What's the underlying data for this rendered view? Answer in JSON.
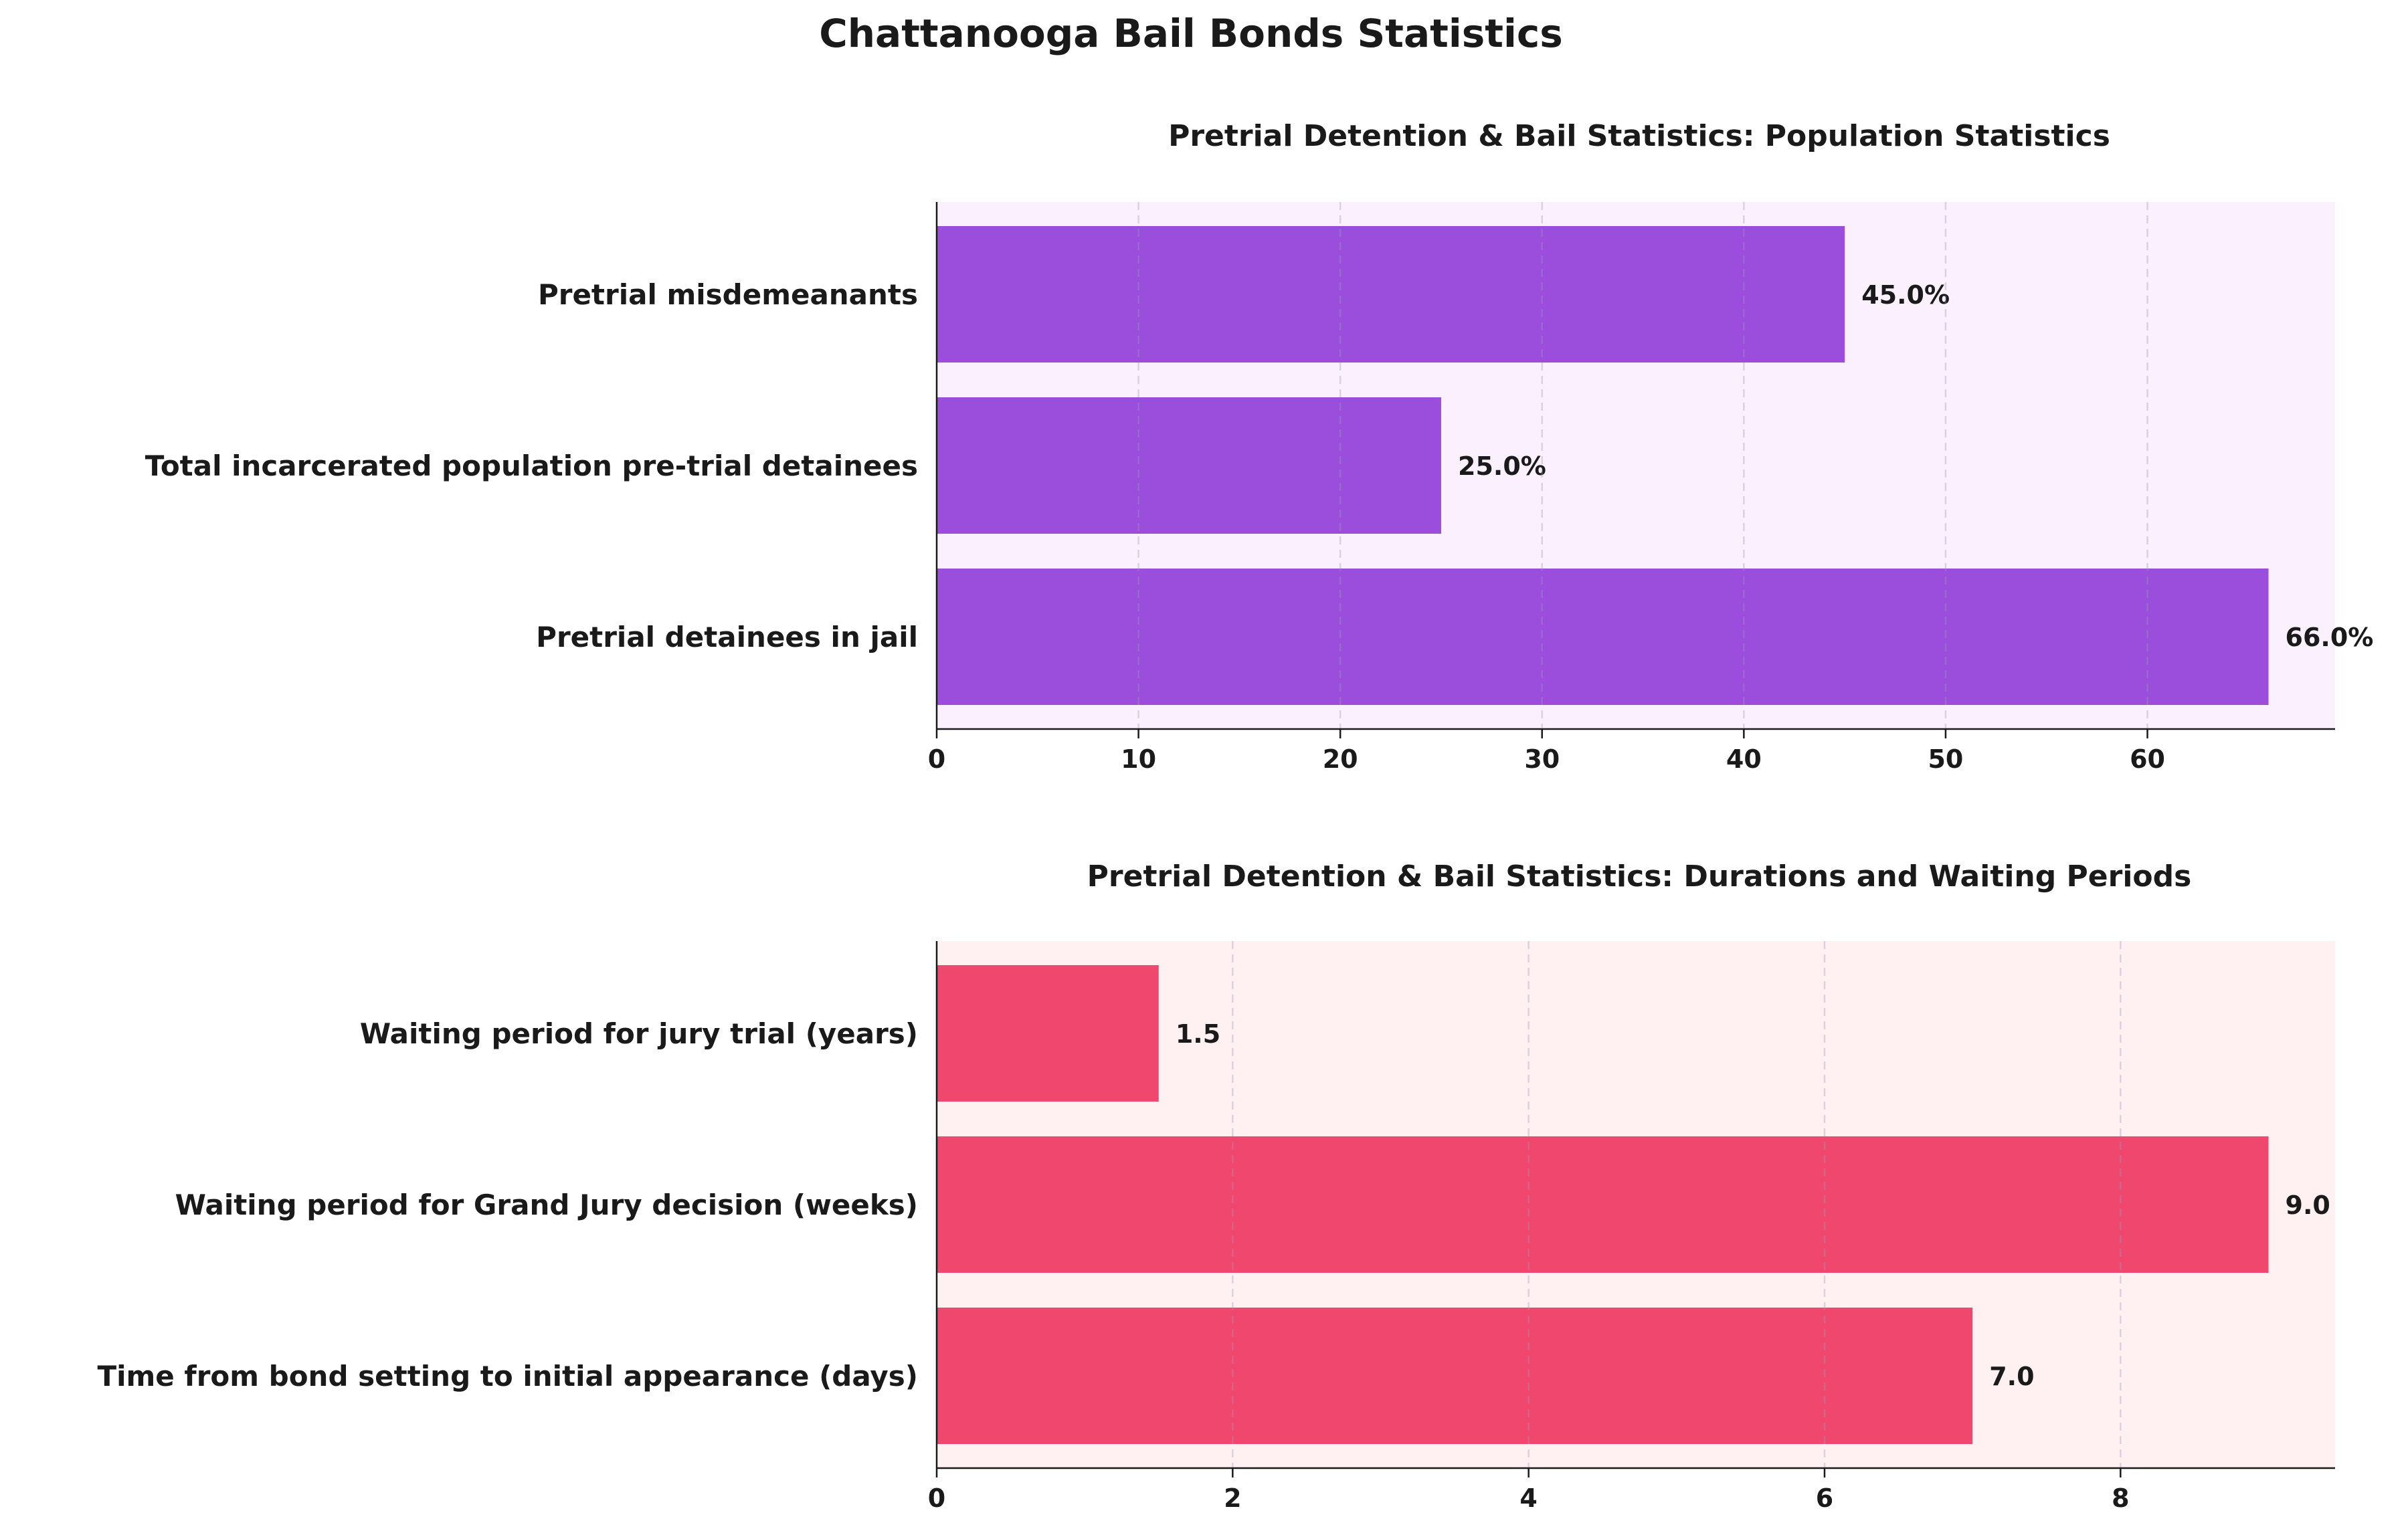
{
  "suptitle": "Chattanooga Bail Bonds Statistics",
  "chart_data": [
    {
      "type": "bar",
      "orientation": "horizontal",
      "title": "Pretrial Detention & Bail Statistics: Population Statistics",
      "xlabel": "",
      "ylabel": "",
      "categories": [
        "Pretrial misdemeanants",
        "Total incarcerated population pre-trial detainees",
        "Pretrial detainees in jail"
      ],
      "values": [
        45.0,
        25.0,
        66.0
      ],
      "value_labels": [
        "45.0%",
        "25.0%",
        "66.0%"
      ],
      "xlim": [
        0,
        69.3
      ],
      "xticks": [
        0,
        10,
        20,
        30,
        40,
        50,
        60
      ],
      "grid": "x-dashed",
      "bar_color": "#9b4ddc",
      "background_color": "#fbf0fd",
      "legend": "none"
    },
    {
      "type": "bar",
      "orientation": "horizontal",
      "title": "Pretrial Detention & Bail Statistics: Durations and Waiting Periods",
      "xlabel": "",
      "ylabel": "",
      "categories": [
        "Waiting period for jury trial (years)",
        "Waiting period for Grand Jury decision (weeks)",
        "Time from bond setting to initial appearance (days)"
      ],
      "values": [
        1.5,
        9.0,
        7.0
      ],
      "value_labels": [
        "1.5",
        "9.0",
        "7.0"
      ],
      "xlim": [
        0,
        9.45
      ],
      "xticks": [
        0,
        2,
        4,
        6,
        8
      ],
      "grid": "x-dashed",
      "bar_color": "#f0476e",
      "background_color": "#fff0f2",
      "legend": "none"
    }
  ]
}
